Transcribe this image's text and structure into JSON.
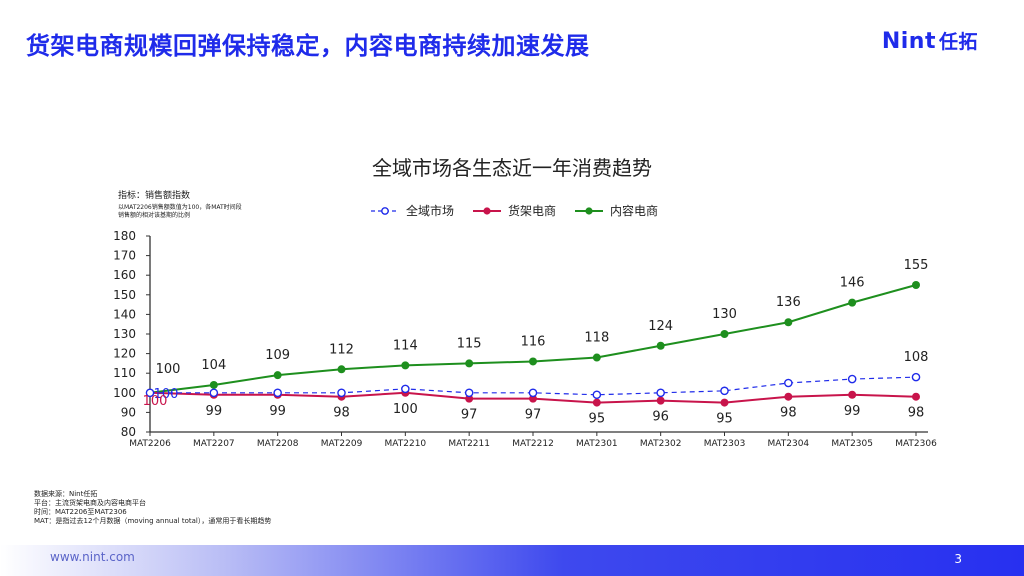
{
  "header": {
    "title": "货架电商规模回弹保持稳定，内容电商持续加速发展"
  },
  "logo": {
    "latin": "Nint",
    "cn": "任拓"
  },
  "chart_data": {
    "type": "line",
    "title": "全域市场各生态近一年消费趋势",
    "metric_label": "指标：销售额指数",
    "metric_note": "以MAT2206销售额数值为100，各MAT时间段销售额的相对该基期的比例",
    "categories": [
      "MAT2206",
      "MAT2207",
      "MAT2208",
      "MAT2209",
      "MAT2210",
      "MAT2211",
      "MAT2212",
      "MAT2301",
      "MAT2302",
      "MAT2303",
      "MAT2304",
      "MAT2305",
      "MAT2306"
    ],
    "y_ticks": [
      "80",
      "90",
      "100",
      "110",
      "120",
      "130",
      "140",
      "150",
      "160",
      "170",
      "180"
    ],
    "ylim": [
      80,
      180
    ],
    "legend_position": "top",
    "series": [
      {
        "name": "全域市场",
        "color": "#1f2bea",
        "style": "dashed",
        "marker": "open-circle",
        "values": [
          100,
          100,
          100,
          100,
          102,
          100,
          100,
          99,
          100,
          101,
          105,
          107,
          108
        ],
        "labels": [
          "100",
          "",
          "",
          "",
          "",
          "",
          "",
          "",
          "",
          "",
          "",
          "",
          "108"
        ]
      },
      {
        "name": "货架电商",
        "color": "#c8144b",
        "style": "solid",
        "marker": "filled-circle",
        "values": [
          100,
          99,
          99,
          98,
          100,
          97,
          97,
          95,
          96,
          95,
          98,
          99,
          98
        ],
        "labels": [
          "100",
          "99",
          "99",
          "98",
          "100",
          "97",
          "97",
          "95",
          "96",
          "95",
          "98",
          "99",
          "98"
        ]
      },
      {
        "name": "内容电商",
        "color": "#1e8f1e",
        "style": "solid",
        "marker": "filled-circle",
        "values": [
          100,
          104,
          109,
          112,
          114,
          115,
          116,
          118,
          124,
          130,
          136,
          146,
          155
        ],
        "labels": [
          "100",
          "104",
          "109",
          "112",
          "114",
          "115",
          "116",
          "118",
          "124",
          "130",
          "136",
          "146",
          "155"
        ]
      }
    ]
  },
  "notes": [
    "数据来源：Nint任拓",
    "平台：主流货架电商及内容电商平台",
    "时间：MAT2206至MAT2306",
    "MAT：是指过去12个月数据（moving annual total），通常用于看长期趋势"
  ],
  "footer": {
    "url": "www.nint.com",
    "page_number": "3"
  }
}
